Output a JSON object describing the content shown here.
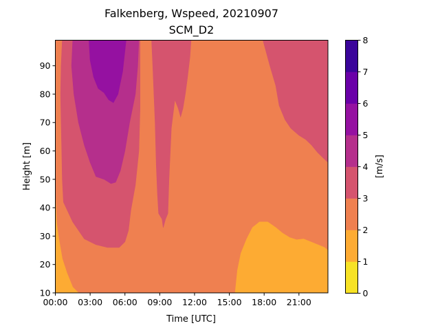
{
  "chart_data": {
    "type": "heatmap",
    "title": "Falkenberg, Wspeed, 20210907",
    "subtitle": "SCM_D2",
    "xlabel": "Time [UTC]",
    "ylabel": "Height [m]",
    "colorbar_label": "[m/s]",
    "xlim": [
      0,
      23.5
    ],
    "ylim": [
      10,
      99
    ],
    "x_ticks": [
      0,
      3,
      6,
      9,
      12,
      15,
      18,
      21
    ],
    "x_tick_labels": [
      "00:00",
      "03:00",
      "06:00",
      "09:00",
      "12:00",
      "15:00",
      "18:00",
      "21:00"
    ],
    "y_ticks": [
      10,
      20,
      30,
      40,
      50,
      60,
      70,
      80,
      90
    ],
    "y_tick_labels": [
      "10",
      "20",
      "30",
      "40",
      "50",
      "60",
      "70",
      "80",
      "90"
    ],
    "colorbar": {
      "levels": [
        0,
        1,
        2,
        3,
        4,
        5,
        6,
        7,
        8
      ],
      "tick_labels": [
        "0",
        "1",
        "2",
        "3",
        "4",
        "5",
        "6",
        "7",
        "8"
      ],
      "colors": [
        "#f7e225",
        "#fdab33",
        "#ef8050",
        "#d5546e",
        "#b52f8c",
        "#9511a1",
        "#6a00a8",
        "#3a049a"
      ]
    },
    "regions": [
      {
        "level": "2-3",
        "color": "#ef8050",
        "points": [
          [
            0,
            10
          ],
          [
            0,
            99
          ],
          [
            23.5,
            99
          ],
          [
            23.5,
            10
          ]
        ]
      },
      {
        "level": "3-4",
        "color": "#d5546e",
        "points": [
          [
            0.6,
            99
          ],
          [
            0.5,
            90
          ],
          [
            0.45,
            80
          ],
          [
            0.5,
            70
          ],
          [
            0.55,
            60
          ],
          [
            0.6,
            50
          ],
          [
            0.7,
            42
          ],
          [
            1.5,
            35
          ],
          [
            2.5,
            29
          ],
          [
            3.5,
            27
          ],
          [
            4.5,
            26
          ],
          [
            5.5,
            26
          ],
          [
            6.0,
            28
          ],
          [
            6.3,
            32
          ],
          [
            6.5,
            39
          ],
          [
            6.9,
            48
          ],
          [
            7.2,
            60
          ],
          [
            7.3,
            75
          ],
          [
            7.3,
            99
          ],
          [
            8.3,
            99
          ],
          [
            8.4,
            90
          ],
          [
            8.6,
            70
          ],
          [
            8.7,
            55
          ],
          [
            8.8,
            45
          ],
          [
            8.9,
            38
          ],
          [
            9.2,
            36
          ],
          [
            9.3,
            33
          ],
          [
            9.5,
            36
          ],
          [
            9.7,
            38
          ],
          [
            9.8,
            50
          ],
          [
            10.0,
            68
          ],
          [
            10.3,
            78
          ],
          [
            10.6,
            75
          ],
          [
            10.8,
            72
          ],
          [
            11.0,
            75
          ],
          [
            11.2,
            80
          ],
          [
            11.4,
            86
          ],
          [
            11.6,
            93
          ],
          [
            11.7,
            99
          ]
        ]
      },
      {
        "level": "3-4",
        "color": "#d5546e",
        "points": [
          [
            17.9,
            99
          ],
          [
            18.5,
            90
          ],
          [
            19.0,
            83
          ],
          [
            19.3,
            76
          ],
          [
            19.8,
            71
          ],
          [
            20.3,
            68
          ],
          [
            21.0,
            65.5
          ],
          [
            21.6,
            64
          ],
          [
            22.1,
            62
          ],
          [
            22.6,
            59.5
          ],
          [
            23.1,
            57.5
          ],
          [
            23.5,
            56
          ],
          [
            23.5,
            99
          ]
        ]
      },
      {
        "level": "1-2",
        "color": "#fdab33",
        "points": [
          [
            0,
            45
          ],
          [
            0.1,
            35
          ],
          [
            0.3,
            29
          ],
          [
            0.6,
            22
          ],
          [
            1.0,
            17
          ],
          [
            1.5,
            12
          ],
          [
            2.0,
            10
          ],
          [
            0,
            10
          ]
        ]
      },
      {
        "level": "1-2",
        "color": "#fdab33",
        "points": [
          [
            15.5,
            10
          ],
          [
            15.7,
            18
          ],
          [
            16.0,
            24
          ],
          [
            16.5,
            29
          ],
          [
            17.0,
            33
          ],
          [
            17.6,
            35
          ],
          [
            18.3,
            35
          ],
          [
            19.0,
            33
          ],
          [
            19.6,
            31
          ],
          [
            20.2,
            29.5
          ],
          [
            20.8,
            28.7
          ],
          [
            21.4,
            29
          ],
          [
            22.0,
            28
          ],
          [
            22.6,
            27
          ],
          [
            23.2,
            26
          ],
          [
            23.5,
            25
          ],
          [
            23.5,
            10
          ]
        ]
      },
      {
        "level": "4-5",
        "color": "#b52f8c",
        "points": [
          [
            1.5,
            99
          ],
          [
            1.4,
            90
          ],
          [
            1.6,
            80
          ],
          [
            2.0,
            70
          ],
          [
            2.5,
            62
          ],
          [
            3.0,
            56
          ],
          [
            3.5,
            51
          ],
          [
            4.2,
            50
          ],
          [
            4.8,
            48.5
          ],
          [
            5.2,
            49
          ],
          [
            5.6,
            53
          ],
          [
            6.0,
            60
          ],
          [
            6.4,
            70
          ],
          [
            6.9,
            80
          ],
          [
            7.1,
            90
          ],
          [
            7.2,
            99
          ]
        ]
      },
      {
        "level": "5-6",
        "color": "#9511a1",
        "points": [
          [
            2.9,
            99
          ],
          [
            3.0,
            92
          ],
          [
            3.3,
            86
          ],
          [
            3.7,
            82
          ],
          [
            4.2,
            80.5
          ],
          [
            4.6,
            78
          ],
          [
            5.0,
            77
          ],
          [
            5.4,
            80
          ],
          [
            5.8,
            88
          ],
          [
            6.1,
            99
          ]
        ]
      }
    ]
  }
}
